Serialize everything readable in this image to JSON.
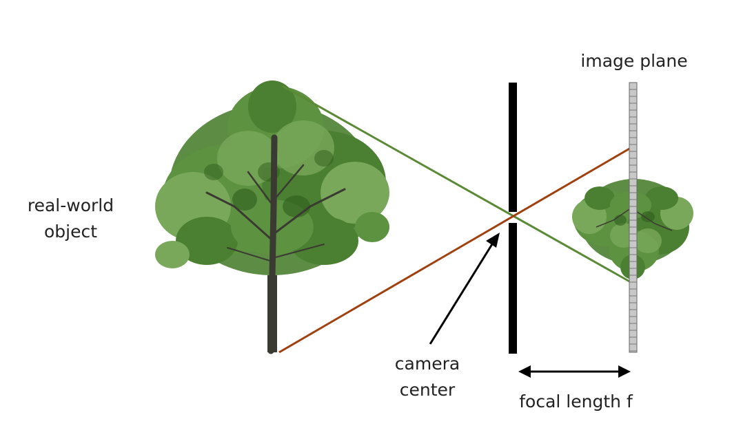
{
  "labels": {
    "object_line1": "real-world",
    "object_line2": "object",
    "camera_line1": "camera",
    "camera_line2": "center",
    "image_plane": "image plane",
    "focal_length": "focal length f"
  },
  "colors": {
    "background": "#ffffff",
    "top_ray": "#5a8a35",
    "bottom_ray": "#a0400f",
    "barrier": "#000000",
    "image_plane_fill": "#c8c8c8",
    "image_plane_stroke": "#666666",
    "foliage_dark": "#2f5e1e",
    "foliage_mid": "#4b7f31",
    "foliage_light": "#79a85a",
    "trunk": "#3a3a32",
    "text": "#222222"
  },
  "icons": {
    "object": "tree-icon",
    "image": "inverted-tree-icon"
  }
}
